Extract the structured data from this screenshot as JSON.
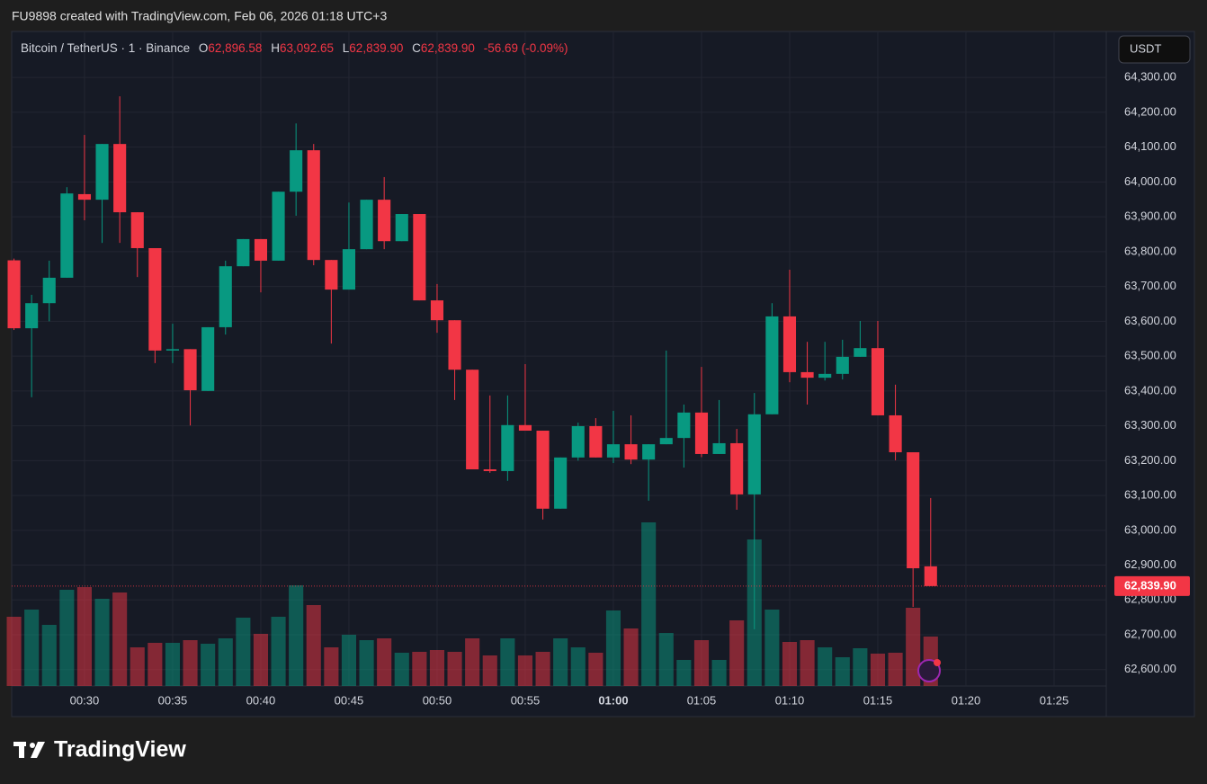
{
  "header": {
    "credit": "FU9898 created with TradingView.com, Feb 06, 2026 01:18 UTC+3"
  },
  "chart_data": {
    "type": "candlestick",
    "symbol": "Bitcoin / TetherUS · 1 · Binance",
    "legend": {
      "o": "O",
      "open": "62,896.58",
      "h": "H",
      "high": "63,092.65",
      "l": "L",
      "low": "62,839.90",
      "c": "C",
      "close": "62,839.90",
      "change": "-56.69 (-0.09%)"
    },
    "currency": "USDT",
    "open": [
      63775,
      63580,
      63652,
      63725,
      63965,
      63949,
      64109,
      63913,
      63810,
      63516,
      63520,
      63400,
      63583,
      63758,
      63836,
      63774,
      63972,
      64091,
      63776,
      63691,
      63807,
      63949,
      63830,
      63908,
      63660,
      63603,
      63461,
      63175,
      63170,
      63302,
      63286,
      63062,
      63209,
      63299,
      63209,
      63247,
      63203,
      63247,
      63265,
      63338,
      63219,
      63250,
      63103,
      63333,
      63614,
      63454,
      63438,
      63449,
      63498,
      63523,
      63330,
      63224,
      62896.58
    ],
    "high": [
      63780,
      63676,
      63774,
      63985,
      64135,
      64109,
      64246,
      63913,
      63810,
      63593,
      63520,
      63583,
      63774,
      63836,
      63836,
      63972,
      64168,
      64109,
      63776,
      63941,
      63949,
      64014,
      63908,
      63908,
      63707,
      63603,
      63461,
      63387,
      63387,
      63477,
      63286,
      63209,
      63309,
      63322,
      63343,
      63330,
      63247,
      63516,
      63361,
      63469,
      63374,
      63291,
      63394,
      63652,
      63748,
      63541,
      63541,
      63547,
      63601,
      63601,
      63418,
      63224,
      63092.65
    ],
    "low": [
      63575,
      63382,
      63600,
      63725,
      63890,
      63825,
      63825,
      63727,
      63480,
      63480,
      63301,
      63400,
      63562,
      63758,
      63683,
      63774,
      63903,
      63761,
      63536,
      63691,
      63807,
      63807,
      63830,
      63660,
      63567,
      63374,
      63175,
      63165,
      63142,
      63286,
      63031,
      63062,
      63200,
      63209,
      63193,
      63190,
      63085,
      63247,
      63180,
      63210,
      63219,
      63059,
      62716,
      63333,
      63425,
      63361,
      63430,
      63433,
      63498,
      63330,
      63201,
      62780,
      62839.9
    ],
    "close": [
      63580,
      63652,
      63725,
      63967,
      63949,
      64109,
      63913,
      63810,
      63516,
      63520,
      63402,
      63583,
      63758,
      63836,
      63774,
      63972,
      64091,
      63776,
      63691,
      63807,
      63949,
      63830,
      63908,
      63660,
      63603,
      63461,
      63175,
      63170,
      63302,
      63286,
      63062,
      63209,
      63299,
      63209,
      63247,
      63203,
      63247,
      63265,
      63338,
      63219,
      63250,
      63103,
      63333,
      63614,
      63454,
      63438,
      63449,
      63498,
      63523,
      63330,
      63224,
      62891,
      62839.9
    ],
    "volume": [
      77,
      85,
      68,
      107,
      110,
      97,
      104,
      43,
      48,
      48,
      51,
      47,
      53,
      76,
      58,
      77,
      112,
      90,
      43,
      57,
      51,
      53,
      37,
      38,
      40,
      38,
      53,
      34,
      53,
      34,
      38,
      53,
      43,
      37,
      84,
      64,
      182,
      59,
      29,
      51,
      29,
      73,
      163,
      85,
      49,
      51,
      43,
      32,
      42,
      36,
      37,
      87,
      55
    ],
    "up_color": "#089981",
    "down_color": "#f23645",
    "ylim": [
      62553,
      64432
    ],
    "yticks": [
      {
        "value": 62600,
        "label": "62,600.00"
      },
      {
        "value": 62700,
        "label": "62,700.00"
      },
      {
        "value": 62800,
        "label": "62,800.00"
      },
      {
        "value": 62900,
        "label": "62,900.00"
      },
      {
        "value": 63000,
        "label": "63,000.00"
      },
      {
        "value": 63100,
        "label": "63,100.00"
      },
      {
        "value": 63200,
        "label": "63,200.00"
      },
      {
        "value": 63300,
        "label": "63,300.00"
      },
      {
        "value": 63400,
        "label": "63,400.00"
      },
      {
        "value": 63500,
        "label": "63,500.00"
      },
      {
        "value": 63600,
        "label": "63,600.00"
      },
      {
        "value": 63700,
        "label": "63,700.00"
      },
      {
        "value": 63800,
        "label": "63,800.00"
      },
      {
        "value": 63900,
        "label": "63,900.00"
      },
      {
        "value": 64000,
        "label": "64,000.00"
      },
      {
        "value": 64100,
        "label": "64,100.00"
      },
      {
        "value": 64200,
        "label": "64,200.00"
      },
      {
        "value": 64300,
        "label": "64,300.00"
      }
    ],
    "xlim": [
      -0.13,
      61.96
    ],
    "xticks": [
      {
        "value": 4,
        "label": "00:30"
      },
      {
        "value": 9,
        "label": "00:35"
      },
      {
        "value": 14,
        "label": "00:40"
      },
      {
        "value": 19,
        "label": "00:45"
      },
      {
        "value": 24,
        "label": "00:50"
      },
      {
        "value": 29,
        "label": "00:55"
      },
      {
        "value": 34,
        "label": "01:00"
      },
      {
        "value": 39,
        "label": "01:05"
      },
      {
        "value": 44,
        "label": "01:10"
      },
      {
        "value": 49,
        "label": "01:15"
      },
      {
        "value": 54,
        "label": "01:20"
      },
      {
        "value": 59,
        "label": "01:25"
      }
    ],
    "last_price_label": "62,839.90",
    "grid": true
  },
  "footer": {
    "logo": "TradingView"
  }
}
